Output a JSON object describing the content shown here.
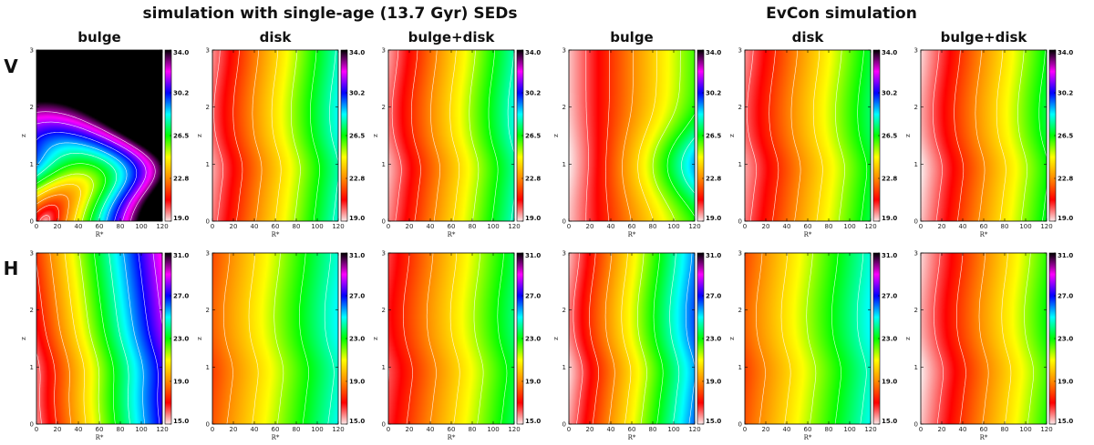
{
  "chart_data": {
    "type": "heatmap",
    "group_titles": [
      "simulation with single-age (13.7 Gyr) SEDs",
      "EvCon simulation"
    ],
    "component_titles": [
      "bulge",
      "disk",
      "bulge+disk"
    ],
    "bands": [
      {
        "name": "V",
        "colorbar_ticks": [
          "19.0",
          "22.8",
          "26.5",
          "30.2",
          "34.0"
        ],
        "range": [
          19.0,
          34.0
        ]
      },
      {
        "name": "H",
        "colorbar_ticks": [
          "15.0",
          "19.0",
          "23.0",
          "27.0",
          "31.0"
        ],
        "range": [
          15.0,
          31.0
        ]
      }
    ],
    "xlabel": "R*",
    "ylabel": "z",
    "xlim": [
      0,
      120
    ],
    "ylim": [
      0,
      3
    ],
    "xticks": [
      "0",
      "20",
      "40",
      "60",
      "80",
      "100",
      "120"
    ],
    "yticks": [
      "0",
      "1",
      "2",
      "3"
    ],
    "colormap": [
      "#fbe9e9",
      "#ff0000",
      "#ff8c00",
      "#ffff00",
      "#00ff00",
      "#00ffff",
      "#0000ff",
      "#ff00ff",
      "#000000"
    ],
    "panels": [
      {
        "group": 0,
        "band": 0,
        "component": 0,
        "shape": "bulge",
        "base": 0.03,
        "slope": 1.25,
        "peak": 0.0,
        "wave": 0.0,
        "sat": 0.0
      },
      {
        "group": 0,
        "band": 0,
        "component": 1,
        "shape": "disk",
        "base": 0.06,
        "slope": 0.55,
        "peak": 0.0,
        "wave": 0.0,
        "sat": 0.0
      },
      {
        "group": 0,
        "band": 0,
        "component": 2,
        "shape": "disk",
        "base": 0.05,
        "slope": 0.55,
        "peak": 0.0,
        "wave": 0.0,
        "sat": 0.0
      },
      {
        "group": 1,
        "band": 0,
        "component": 0,
        "shape": "evbulge",
        "base": 0.02,
        "slope": 0.45,
        "peak": 0.22,
        "wave": 0.0,
        "sat": 0.0
      },
      {
        "group": 1,
        "band": 0,
        "component": 1,
        "shape": "disk",
        "base": 0.06,
        "slope": 0.48,
        "peak": 0.0,
        "wave": 0.0,
        "sat": 0.0
      },
      {
        "group": 1,
        "band": 0,
        "component": 2,
        "shape": "disk",
        "base": 0.02,
        "slope": 0.5,
        "peak": 0.0,
        "wave": 0.0,
        "sat": 0.0
      },
      {
        "group": 0,
        "band": 1,
        "component": 0,
        "shape": "hbulge",
        "base": 0.05,
        "slope": 0.72,
        "peak": 0.0,
        "wave": 0.0,
        "sat": 0.0
      },
      {
        "group": 0,
        "band": 1,
        "component": 1,
        "shape": "disk",
        "base": 0.2,
        "slope": 0.42,
        "peak": 0.0,
        "wave": 0.0,
        "sat": 0.0
      },
      {
        "group": 0,
        "band": 1,
        "component": 2,
        "shape": "disk",
        "base": 0.1,
        "slope": 0.45,
        "peak": 0.0,
        "wave": 0.0,
        "sat": 0.0
      },
      {
        "group": 1,
        "band": 1,
        "component": 0,
        "shape": "disk",
        "base": 0.04,
        "slope": 0.66,
        "peak": 0.0,
        "wave": 0.0,
        "sat": 0.0
      },
      {
        "group": 1,
        "band": 1,
        "component": 1,
        "shape": "disk",
        "base": 0.2,
        "slope": 0.42,
        "peak": 0.0,
        "wave": 0.0,
        "sat": 0.0
      },
      {
        "group": 1,
        "band": 1,
        "component": 2,
        "shape": "disk",
        "base": 0.02,
        "slope": 0.47,
        "peak": 0.0,
        "wave": 0.0,
        "sat": 0.0
      }
    ]
  }
}
